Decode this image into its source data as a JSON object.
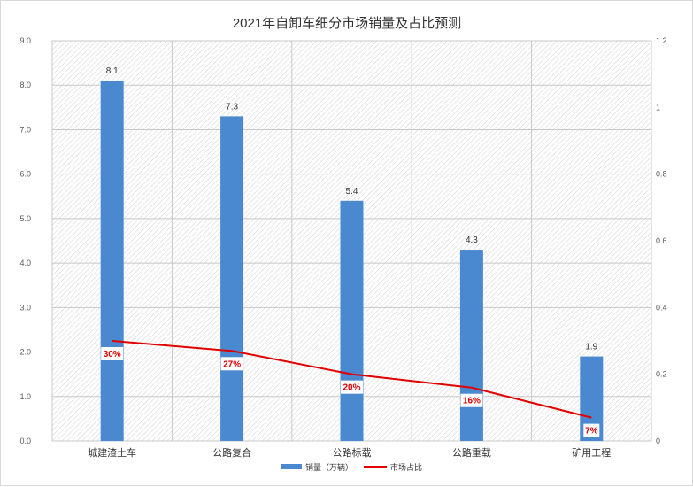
{
  "chart_data": {
    "type": "bar+line",
    "title": "2021年自卸车细分市场销量及占比预测",
    "categories": [
      "城建渣土车",
      "公路复合",
      "公路标载",
      "公路重载",
      "矿用工程"
    ],
    "series": [
      {
        "name": "销量（万辆）",
        "type": "bar",
        "axis": "left",
        "values": [
          8.1,
          7.3,
          5.4,
          4.3,
          1.9
        ],
        "color": "#4a89d0",
        "labels": [
          "8.1",
          "7.3",
          "5.4",
          "4.3",
          "1.9"
        ]
      },
      {
        "name": "市场占比",
        "type": "line",
        "axis": "right",
        "values": [
          0.3,
          0.27,
          0.2,
          0.16,
          0.07
        ],
        "color": "#e00000",
        "labels": [
          "30%",
          "27%",
          "20%",
          "16%",
          "7%"
        ]
      }
    ],
    "left_axis": {
      "ylim": [
        0,
        9
      ],
      "ticks": [
        "0.0",
        "1.0",
        "2.0",
        "3.0",
        "4.0",
        "5.0",
        "6.0",
        "7.0",
        "8.0",
        "9.0"
      ]
    },
    "right_axis": {
      "ylim": [
        0,
        1.2
      ],
      "ticks": [
        "0",
        "0.2",
        "0.4",
        "0.6",
        "0.8",
        "1",
        "1.2"
      ]
    },
    "grid": true,
    "legend_position": "bottom-center"
  }
}
